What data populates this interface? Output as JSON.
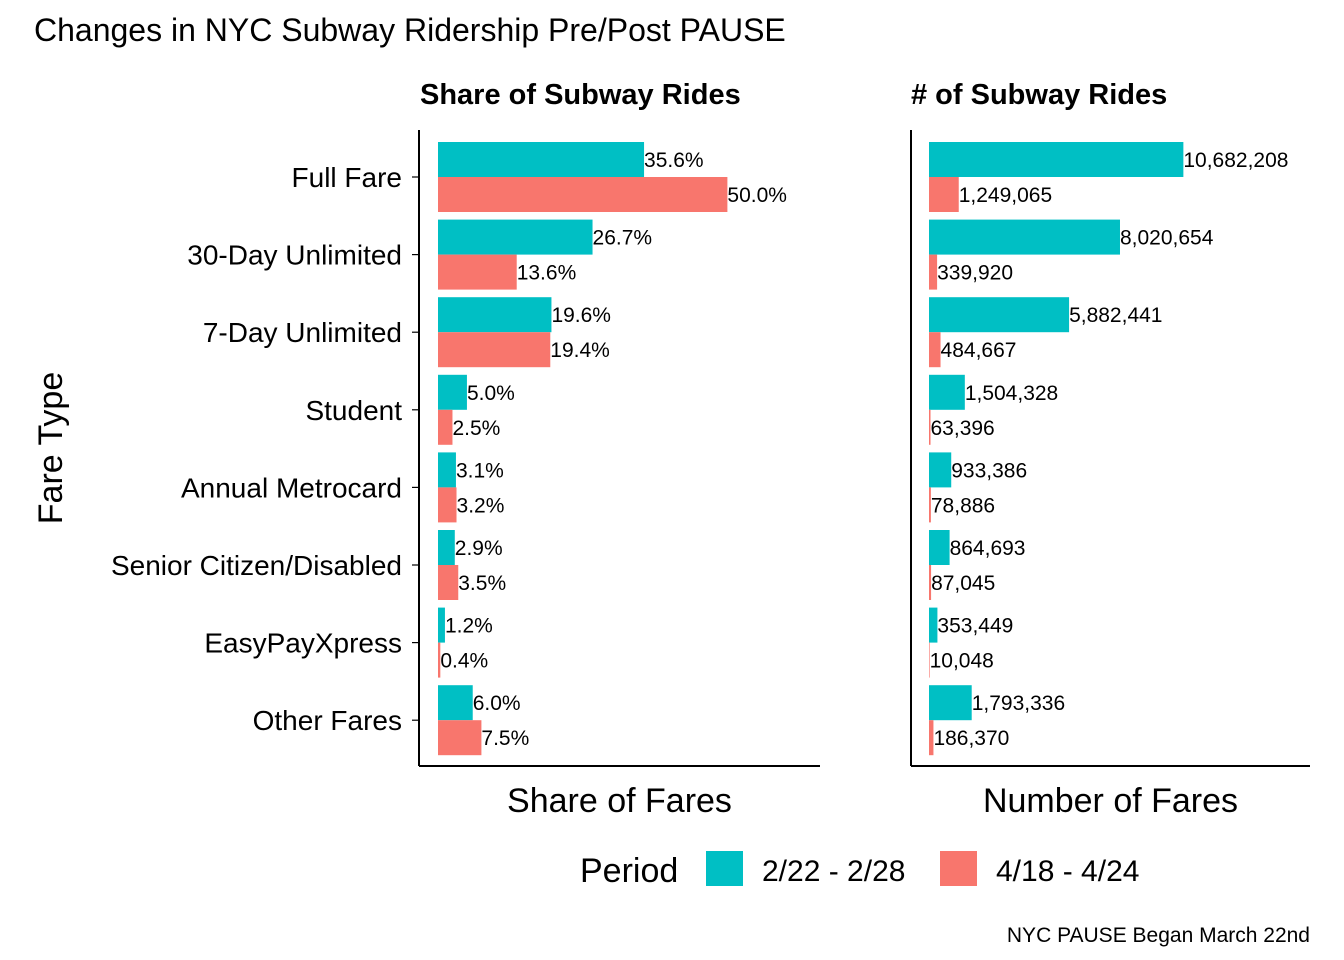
{
  "chart_data": {
    "type": "bar",
    "orientation": "horizontal",
    "title": "Changes in NYC Subway Ridership Pre/Post PAUSE",
    "ylabel": "Fare Type",
    "caption": "NYC PAUSE Began March 22nd",
    "categories": [
      "Full Fare",
      "30-Day Unlimited",
      "7-Day Unlimited",
      "Student",
      "Annual Metrocard",
      "Senior Citizen/Disabled",
      "EasyPayXpress",
      "Other Fares"
    ],
    "legend": {
      "title": "Period",
      "position": "bottom",
      "entries": [
        {
          "label": "2/22 - 2/28",
          "color": "#00BFC4"
        },
        {
          "label": "4/18 - 4/24",
          "color": "#F8766D"
        }
      ]
    },
    "grid": false,
    "panels": [
      {
        "title": "Share of Subway Rides",
        "xlabel": "Share of Fares",
        "xlim": [
          0,
          66
        ],
        "series": [
          {
            "period": "2/22 - 2/28",
            "values": [
              35.6,
              26.7,
              19.6,
              5.0,
              3.1,
              2.9,
              1.2,
              6.0
            ],
            "labels": [
              "35.6%",
              "26.7%",
              "19.6%",
              "5.0%",
              "3.1%",
              "2.9%",
              "1.2%",
              "6.0%"
            ]
          },
          {
            "period": "4/18 - 4/24",
            "values": [
              50.0,
              13.6,
              19.4,
              2.5,
              3.2,
              3.5,
              0.4,
              7.5
            ],
            "labels": [
              "50.0%",
              "13.6%",
              "19.4%",
              "2.5%",
              "3.2%",
              "3.5%",
              "0.4%",
              "7.5%"
            ]
          }
        ]
      },
      {
        "title": "# of Subway Rides",
        "xlabel": "Number of Fares",
        "xlim": [
          0,
          16000000
        ],
        "series": [
          {
            "period": "2/22 - 2/28",
            "values": [
              10682208,
              8020654,
              5882441,
              1504328,
              933386,
              864693,
              353449,
              1793336
            ],
            "labels": [
              "10,682,208",
              "8,020,654",
              "5,882,441",
              "1,504,328",
              "933,386",
              "864,693",
              "353,449",
              "1,793,336"
            ]
          },
          {
            "period": "4/18 - 4/24",
            "values": [
              1249065,
              339920,
              484667,
              63396,
              78886,
              87045,
              10048,
              186370
            ],
            "labels": [
              "1,249,065",
              "339,920",
              "484,667",
              "63,396",
              "78,886",
              "87,045",
              "10,048",
              "186,370"
            ]
          }
        ]
      }
    ]
  }
}
